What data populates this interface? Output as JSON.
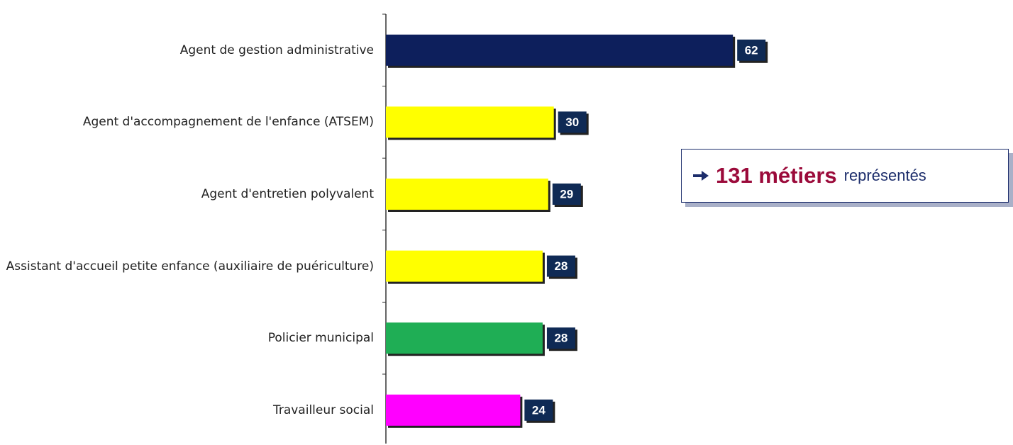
{
  "chart_data": {
    "type": "barh",
    "categories": [
      "Agent de gestion administrative",
      "Agent d'accompagnement de l'enfance (ATSEM)",
      "Agent d'entretien polyvalent",
      "Assistant d'accueil petite enfance (auxiliaire de puériculture)",
      "Policier municipal",
      "Travailleur social"
    ],
    "values": [
      62,
      30,
      29,
      28,
      28,
      24
    ],
    "colors": [
      "#0d1f5c",
      "#ffff00",
      "#ffff00",
      "#ffff00",
      "#1fae55",
      "#ff00ff"
    ],
    "xlim": [
      0,
      100
    ],
    "annotation": {
      "highlight": "131 métiers",
      "text": "représentés"
    }
  }
}
